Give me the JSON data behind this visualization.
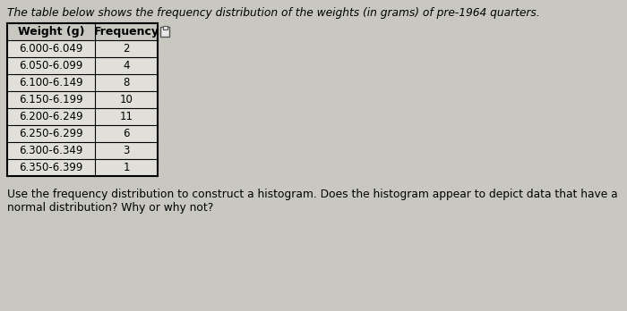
{
  "title": "The table below shows the frequency distribution of the weights (in grams) of pre-1964 quarters.",
  "col_headers": [
    "Weight (g)",
    "Frequency"
  ],
  "rows": [
    [
      "6.000-6.049",
      "2"
    ],
    [
      "6.050-6.099",
      "4"
    ],
    [
      "6.100-6.149",
      "8"
    ],
    [
      "6.150-6.199",
      "10"
    ],
    [
      "6.200-6.249",
      "11"
    ],
    [
      "6.250-6.299",
      "6"
    ],
    [
      "6.300-6.349",
      "3"
    ],
    [
      "6.350-6.399",
      "1"
    ]
  ],
  "footer_line1": "Use the frequency distribution to construct a histogram. Does the histogram appear to depict data that have a",
  "footer_line2": "normal distribution? Why or why not?",
  "bg_color": "#c8c8c0",
  "table_bg": "#e0e0d8",
  "header_bg": "#c8c8c0",
  "title_fontsize": 8.8,
  "body_fontsize": 8.5,
  "footer_fontsize": 8.8
}
